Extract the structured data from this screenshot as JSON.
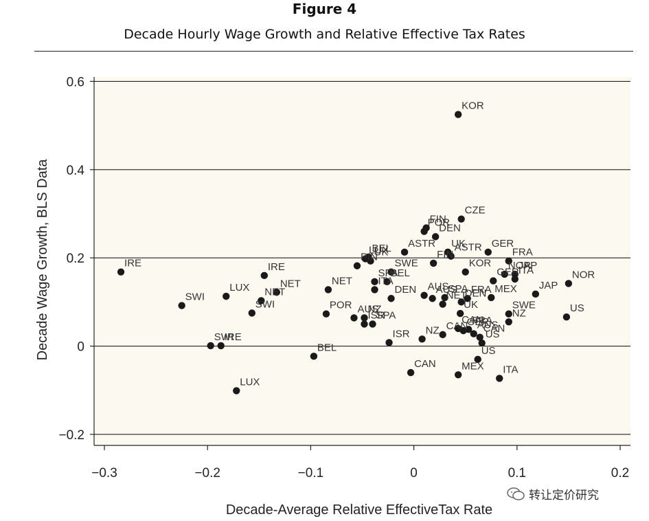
{
  "figure": {
    "title": "Figure 4",
    "subtitle": "Decade Hourly Wage Growth and Relative Effective Tax Rates"
  },
  "watermark": {
    "text": "转让定价研究",
    "icon": "wechat-icon"
  },
  "colors": {
    "plot_background": "#fcf9f1",
    "point": "#1a1a1a",
    "gridline": "#222222",
    "label": "#333333"
  },
  "chart_data": {
    "type": "scatter",
    "title": "",
    "xlabel": "Decade-Average Relative EffectiveTax Rate",
    "ylabel": "Decade Wage Growth, BLS Data",
    "xlim": [
      -0.31,
      0.21
    ],
    "ylim": [
      -0.225,
      0.61
    ],
    "xticks": [
      -0.3,
      -0.2,
      -0.1,
      0,
      0.1,
      0.2
    ],
    "xtick_labels": [
      "−0.3",
      "−0.2",
      "−0.1",
      "0",
      "0.1",
      "0.2"
    ],
    "yticks": [
      -0.2,
      0,
      0.2,
      0.4,
      0.6
    ],
    "ytick_labels": [
      "−0.2",
      "0",
      "0.2",
      "0.4",
      "0.6"
    ],
    "horizontal_gridlines": [
      -0.2,
      0,
      0.2,
      0.4,
      0.6
    ],
    "grid": "horizontal",
    "points": [
      {
        "label": "KOR",
        "x": 0.043,
        "y": 0.525
      },
      {
        "label": "CZE",
        "x": 0.046,
        "y": 0.288
      },
      {
        "label": "FIN",
        "x": 0.012,
        "y": 0.268
      },
      {
        "label": "POR",
        "x": 0.01,
        "y": 0.26
      },
      {
        "label": "DEN",
        "x": 0.021,
        "y": 0.248
      },
      {
        "label": "ASTR",
        "x": -0.009,
        "y": 0.213
      },
      {
        "label": "UK",
        "x": 0.033,
        "y": 0.213
      },
      {
        "label": "GER",
        "x": 0.072,
        "y": 0.213
      },
      {
        "label": "ASTR",
        "x": 0.036,
        "y": 0.204
      },
      {
        "label": "FRA",
        "x": 0.092,
        "y": 0.193
      },
      {
        "label": "BEL",
        "x": -0.044,
        "y": 0.202
      },
      {
        "label": "LUX",
        "x": -0.047,
        "y": 0.198
      },
      {
        "label": "UK",
        "x": -0.042,
        "y": 0.193
      },
      {
        "label": "PIN",
        "x": -0.055,
        "y": 0.182
      },
      {
        "label": "FIN",
        "x": 0.019,
        "y": 0.188
      },
      {
        "label": "KOR",
        "x": 0.05,
        "y": 0.168
      },
      {
        "label": "NOR",
        "x": 0.088,
        "y": 0.163
      },
      {
        "label": "JAP",
        "x": 0.098,
        "y": 0.163
      },
      {
        "label": "SWE",
        "x": -0.022,
        "y": 0.168
      },
      {
        "label": "SPA",
        "x": -0.038,
        "y": 0.146
      },
      {
        "label": "BEL",
        "x": -0.026,
        "y": 0.146
      },
      {
        "label": "GER",
        "x": 0.077,
        "y": 0.148
      },
      {
        "label": "ITA",
        "x": 0.098,
        "y": 0.152
      },
      {
        "label": "NET",
        "x": -0.083,
        "y": 0.128
      },
      {
        "label": "ITA",
        "x": -0.038,
        "y": 0.128
      },
      {
        "label": "AUS",
        "x": 0.01,
        "y": 0.115
      },
      {
        "label": "AUS",
        "x": 0.018,
        "y": 0.108
      },
      {
        "label": "SPA",
        "x": 0.03,
        "y": 0.11
      },
      {
        "label": "FRA",
        "x": 0.052,
        "y": 0.108
      },
      {
        "label": "MEX",
        "x": 0.075,
        "y": 0.11
      },
      {
        "label": "JAP",
        "x": 0.118,
        "y": 0.118
      },
      {
        "label": "DEN",
        "x": -0.022,
        "y": 0.108
      },
      {
        "label": "NET",
        "x": 0.028,
        "y": 0.095
      },
      {
        "label": "DEN",
        "x": 0.046,
        "y": 0.1
      },
      {
        "label": "SWE",
        "x": 0.092,
        "y": 0.073
      },
      {
        "label": "NZ",
        "x": 0.092,
        "y": 0.055
      },
      {
        "label": "US",
        "x": 0.148,
        "y": 0.066
      },
      {
        "label": "NOR",
        "x": 0.15,
        "y": 0.142
      },
      {
        "label": "POR",
        "x": -0.085,
        "y": 0.073
      },
      {
        "label": "AUS",
        "x": -0.058,
        "y": 0.064
      },
      {
        "label": "NZ",
        "x": -0.048,
        "y": 0.064
      },
      {
        "label": "ISR",
        "x": -0.048,
        "y": 0.05
      },
      {
        "label": "SPA",
        "x": -0.04,
        "y": 0.05
      },
      {
        "label": "UK",
        "x": 0.045,
        "y": 0.074
      },
      {
        "label": "CAN",
        "x": 0.043,
        "y": 0.04
      },
      {
        "label": "FRA",
        "x": 0.053,
        "y": 0.038
      },
      {
        "label": "AUS",
        "x": 0.058,
        "y": 0.028
      },
      {
        "label": "ISR",
        "x": -0.024,
        "y": 0.008
      },
      {
        "label": "NZ",
        "x": 0.008,
        "y": 0.016
      },
      {
        "label": "CAN",
        "x": 0.028,
        "y": 0.026
      },
      {
        "label": "GER",
        "x": 0.048,
        "y": 0.035
      },
      {
        "label": "CAN",
        "x": 0.064,
        "y": 0.02
      },
      {
        "label": "US",
        "x": 0.066,
        "y": 0.007
      },
      {
        "label": "US",
        "x": 0.062,
        "y": -0.03
      },
      {
        "label": "CAN",
        "x": -0.003,
        "y": -0.06
      },
      {
        "label": "MEX",
        "x": 0.043,
        "y": -0.065
      },
      {
        "label": "ITA",
        "x": 0.083,
        "y": -0.073
      },
      {
        "label": "IRE",
        "x": -0.284,
        "y": 0.168
      },
      {
        "label": "IRE",
        "x": -0.145,
        "y": 0.16
      },
      {
        "label": "NET",
        "x": -0.133,
        "y": 0.122
      },
      {
        "label": "LUX",
        "x": -0.182,
        "y": 0.113
      },
      {
        "label": "NET",
        "x": -0.148,
        "y": 0.103
      },
      {
        "label": "SWI",
        "x": -0.225,
        "y": 0.092
      },
      {
        "label": "SWI",
        "x": -0.157,
        "y": 0.075
      },
      {
        "label": "SWI",
        "x": -0.197,
        "y": 0.001
      },
      {
        "label": "IRE",
        "x": -0.187,
        "y": 0.001
      },
      {
        "label": "BEL",
        "x": -0.097,
        "y": -0.023
      },
      {
        "label": "LUX",
        "x": -0.172,
        "y": -0.101
      }
    ]
  }
}
